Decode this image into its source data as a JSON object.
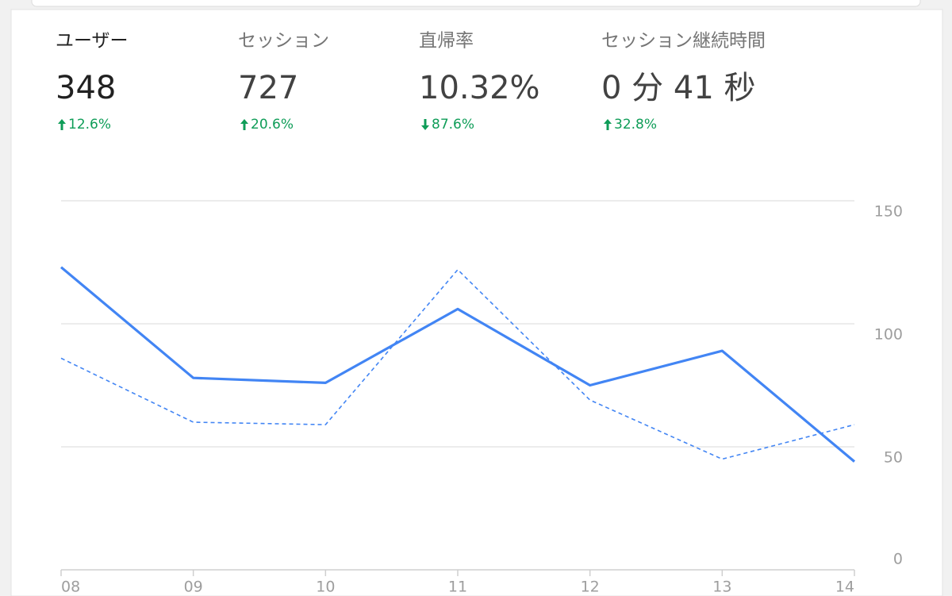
{
  "metrics": [
    {
      "label": "ユーザー",
      "value": "348",
      "change": "12.6%",
      "direction": "up"
    },
    {
      "label": "セッション",
      "value": "727",
      "change": "20.6%",
      "direction": "up"
    },
    {
      "label": "直帰率",
      "value": "10.32%",
      "change": "87.6%",
      "direction": "down"
    },
    {
      "label": "セッション継続時間",
      "value": "0 分 41 秒",
      "change": "32.8%",
      "direction": "up"
    }
  ],
  "chart_data": {
    "type": "line",
    "categories": [
      "08",
      "09",
      "10",
      "11",
      "12",
      "13",
      "14"
    ],
    "series": [
      {
        "color": "#4285f4",
        "dashed": false,
        "values": [
          123,
          78,
          76,
          106,
          75,
          89,
          44
        ]
      },
      {
        "color": "#4285f4",
        "dashed": true,
        "values": [
          86,
          60,
          59,
          122,
          69,
          45,
          59
        ]
      }
    ],
    "ylim": [
      0,
      150
    ],
    "yticks": [
      0,
      50,
      100,
      150
    ],
    "grid": true
  }
}
